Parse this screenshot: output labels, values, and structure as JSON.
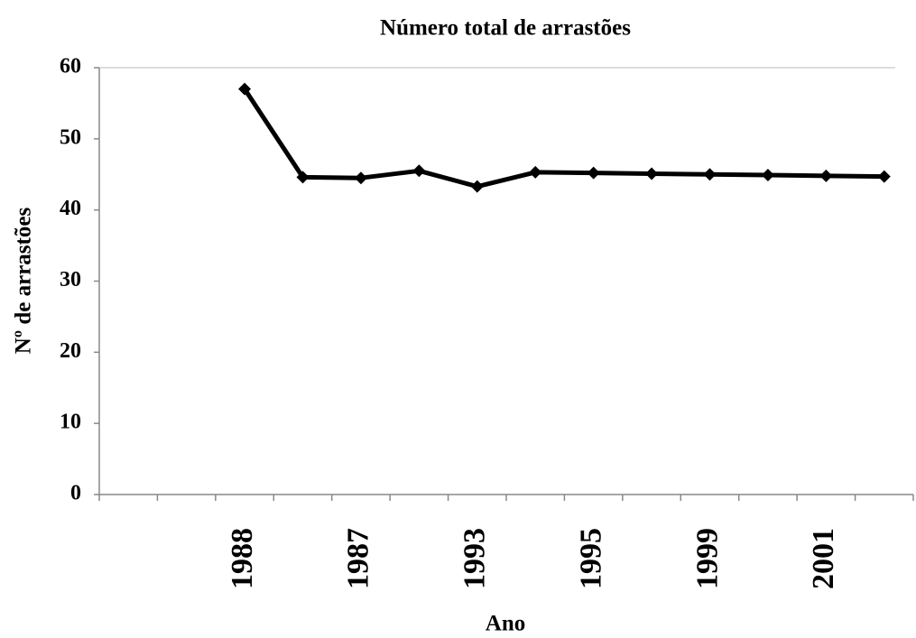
{
  "chart_data": {
    "type": "line",
    "title": "Número total de arrastões",
    "x_label": "Ano",
    "y_label": "Nº de arrastões",
    "categories": [
      null,
      null,
      "1988",
      null,
      "1987",
      null,
      "1993",
      null,
      "1995",
      null,
      "1999",
      null,
      "2001",
      null
    ],
    "series": [
      {
        "name": "Nº de arrastões",
        "color": "#000000",
        "values": [
          null,
          null,
          57,
          44.6,
          44.5,
          45.5,
          43.3,
          45.3,
          45.2,
          45.1,
          45.0,
          44.9,
          44.8,
          44.7
        ]
      }
    ],
    "ylim": [
      0,
      60
    ],
    "yticks": [
      0,
      10,
      20,
      30,
      40,
      50,
      60
    ],
    "grid": false,
    "legend": false
  }
}
